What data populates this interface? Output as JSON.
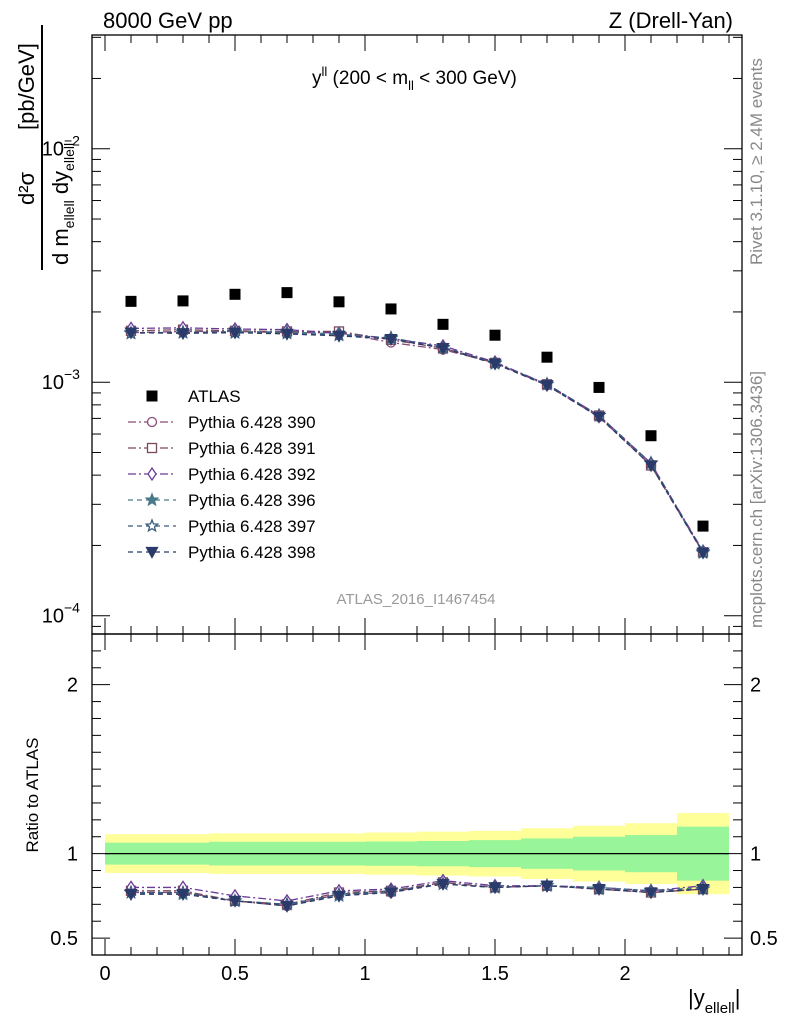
{
  "header": {
    "left": "8000 GeV pp",
    "right": "Z (Drell-Yan)"
  },
  "watermark": {
    "rivet": "Rivet 3.1.10, ≥ 2.4M events",
    "mcplots": "mcplots.cern.ch [arXiv:1306.3436]"
  },
  "chart_data": [
    {
      "type": "scatter",
      "subtitle": "y",
      "subtitle_sup": "ll",
      "subtitle_tail": " (200 < m",
      "subtitle_sub": "ll",
      "subtitle_end": " < 300 GeV)",
      "analysis_label": "ATLAS_2016_I1467454",
      "y_scale": "log",
      "ylim": [
        8.35e-05,
        0.0307
      ],
      "xlim": [
        -0.05,
        2.45
      ],
      "ylabel": {
        "num": "d²σ",
        "den": "d m",
        "den_sub": "ellell",
        "den_tail": " dy",
        "den_tail_sub": "ellell",
        "unit": "[pb/GeV]"
      },
      "y_ticks": [
        {
          "value": 0.0001,
          "label": "10",
          "exp": "−4"
        },
        {
          "value": 0.001,
          "label": "10",
          "exp": "−3"
        },
        {
          "value": 0.01,
          "label": "10",
          "exp": "−2"
        }
      ],
      "x": [
        0.1,
        0.3,
        0.5,
        0.7,
        0.9,
        1.1,
        1.3,
        1.5,
        1.7,
        1.9,
        2.1,
        2.3
      ],
      "series": [
        {
          "name": "ATLAS",
          "color": "#000000",
          "marker": "square-filled",
          "dash": "none",
          "values": [
            0.00222,
            0.00223,
            0.00238,
            0.00242,
            0.00221,
            0.00206,
            0.00177,
            0.00159,
            0.00128,
            0.00095,
            0.00059,
            0.000242
          ]
        },
        {
          "name": "Pythia 6.428 390",
          "color": "#8b4a7a",
          "marker": "circle-open",
          "dash": "8,3,2,3",
          "values": [
            0.00163,
            0.00165,
            0.00165,
            0.00163,
            0.00163,
            0.00148,
            0.00138,
            0.00121,
            0.00097,
            0.00071,
            0.00044,
            0.000187
          ]
        },
        {
          "name": "Pythia 6.428 391",
          "color": "#7a4a5a",
          "marker": "square-open",
          "dash": "8,3,2,3",
          "values": [
            0.00166,
            0.00168,
            0.00166,
            0.00165,
            0.00165,
            0.00152,
            0.0014,
            0.00121,
            0.00098,
            0.00072,
            0.00044,
            0.000187
          ]
        },
        {
          "name": "Pythia 6.428 392",
          "color": "#6a3a9a",
          "marker": "diamond-open",
          "dash": "8,3,2,3",
          "values": [
            0.0017,
            0.00171,
            0.00169,
            0.00168,
            0.00162,
            0.00154,
            0.00143,
            0.00122,
            0.00098,
            0.00072,
            0.00045,
            0.000189
          ]
        },
        {
          "name": "Pythia 6.428 396",
          "color": "#4a7a8a",
          "marker": "star-filled",
          "dash": "5,4",
          "values": [
            0.00163,
            0.00163,
            0.00165,
            0.00164,
            0.00161,
            0.00154,
            0.0014,
            0.0012,
            0.00098,
            0.00072,
            0.00045,
            0.000188
          ]
        },
        {
          "name": "Pythia 6.428 397",
          "color": "#3a5a7a",
          "marker": "star-open",
          "dash": "5,4",
          "values": [
            0.00162,
            0.00164,
            0.00163,
            0.00162,
            0.00159,
            0.00155,
            0.00141,
            0.00121,
            0.00098,
            0.00072,
            0.00045,
            0.000186
          ]
        },
        {
          "name": "Pythia 6.428 398",
          "color": "#2a3a6a",
          "marker": "triangle-down-filled",
          "dash": "5,4",
          "values": [
            0.00163,
            0.00162,
            0.00163,
            0.00161,
            0.00158,
            0.00153,
            0.0014,
            0.0012,
            0.00097,
            0.00071,
            0.00044,
            0.000186
          ]
        }
      ]
    },
    {
      "type": "line",
      "ylabel": "Ratio to ATLAS",
      "xlabel_main": "|y",
      "xlabel_sub": "ellell",
      "xlabel_end": "|",
      "ylim": [
        0.4,
        2.3
      ],
      "y_ticks": [
        {
          "value": 0.5,
          "label": "0.5"
        },
        {
          "value": 1,
          "label": "1"
        },
        {
          "value": 2,
          "label": "2"
        }
      ],
      "x_ticks": [
        {
          "value": 0,
          "label": "0"
        },
        {
          "value": 0.5,
          "label": "0.5"
        },
        {
          "value": 1,
          "label": "1"
        },
        {
          "value": 1.5,
          "label": "1.5"
        },
        {
          "value": 2,
          "label": "2"
        }
      ],
      "band_edges": [
        0,
        0.2,
        0.4,
        0.6,
        0.8,
        1.0,
        1.2,
        1.4,
        1.6,
        1.8,
        2.0,
        2.2,
        2.4
      ],
      "band_outer": [
        0.115,
        0.115,
        0.12,
        0.12,
        0.12,
        0.125,
        0.13,
        0.135,
        0.15,
        0.165,
        0.18,
        0.24
      ],
      "band_inner": [
        0.065,
        0.065,
        0.07,
        0.07,
        0.07,
        0.072,
        0.075,
        0.08,
        0.09,
        0.1,
        0.11,
        0.16
      ],
      "series_ratios": [
        [
          0.77,
          0.77,
          0.72,
          0.69,
          0.76,
          0.77,
          0.83,
          0.8,
          0.81,
          0.79,
          0.77,
          0.79
        ],
        [
          0.78,
          0.78,
          0.72,
          0.7,
          0.77,
          0.78,
          0.83,
          0.8,
          0.81,
          0.79,
          0.77,
          0.79
        ],
        [
          0.8,
          0.8,
          0.75,
          0.72,
          0.78,
          0.79,
          0.84,
          0.81,
          0.81,
          0.8,
          0.78,
          0.81
        ],
        [
          0.77,
          0.76,
          0.72,
          0.7,
          0.75,
          0.78,
          0.82,
          0.8,
          0.81,
          0.8,
          0.78,
          0.8
        ],
        [
          0.77,
          0.77,
          0.72,
          0.7,
          0.76,
          0.78,
          0.82,
          0.8,
          0.81,
          0.79,
          0.78,
          0.79
        ],
        [
          0.76,
          0.76,
          0.72,
          0.69,
          0.75,
          0.77,
          0.82,
          0.8,
          0.81,
          0.79,
          0.77,
          0.79
        ]
      ]
    }
  ]
}
